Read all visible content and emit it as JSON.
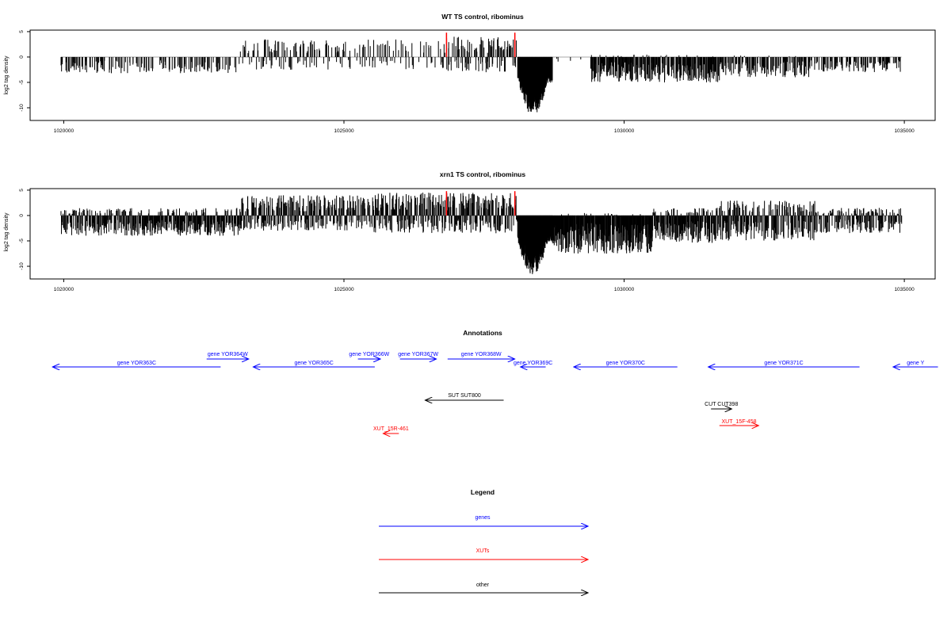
{
  "chart_data": [
    {
      "type": "bar",
      "title": "WT TS control, ribominus",
      "xlabel": "",
      "ylabel": "log2 tag density",
      "xlim": [
        1019400,
        1035550
      ],
      "ylim": [
        -12.5,
        5.3
      ],
      "x_ticks": [
        1020000,
        1025000,
        1030000,
        1035000
      ],
      "x_tick_labels": [
        "1020000",
        "1025000",
        "1030000",
        "1035000"
      ],
      "y_ticks": [
        5,
        0,
        -5,
        -10
      ],
      "y_tick_labels": [
        "5",
        "0",
        "-5",
        "-10"
      ],
      "grid": false,
      "baseline_color": "#aaaaaa",
      "bar_color": "#000000",
      "highlight_color": "#ff0000",
      "highlight_positions": [
        1026830,
        1028050
      ],
      "highlight_value": 4.8,
      "segments": [
        {
          "start": 1019950,
          "end": 1023150,
          "sense_max": 0.0,
          "anti_max": 3.2,
          "density": 0.32,
          "seed": 11
        },
        {
          "start": 1023150,
          "end": 1026750,
          "sense_max": 3.5,
          "anti_max": 2.5,
          "density": 0.34,
          "seed": 12
        },
        {
          "start": 1026750,
          "end": 1028100,
          "sense_max": 4.0,
          "anti_max": 3.0,
          "density": 0.55,
          "seed": 13
        },
        {
          "start": 1028100,
          "end": 1028720,
          "sense_max": 0.0,
          "anti_max": 11.5,
          "density": 1.0,
          "seed": 14,
          "dense": true
        },
        {
          "start": 1028720,
          "end": 1029400,
          "sense_max": 0.0,
          "anti_max": 1.0,
          "density": 0.05,
          "seed": 15
        },
        {
          "start": 1029400,
          "end": 1031700,
          "sense_max": 0.5,
          "anti_max": 5.0,
          "density": 0.75,
          "seed": 16
        },
        {
          "start": 1031700,
          "end": 1033300,
          "sense_max": 0.3,
          "anti_max": 4.0,
          "density": 0.55,
          "seed": 17
        },
        {
          "start": 1033300,
          "end": 1034950,
          "sense_max": 0.0,
          "anti_max": 3.0,
          "density": 0.45,
          "seed": 18
        }
      ]
    },
    {
      "type": "bar",
      "title": "xrn1 TS control, ribominus",
      "xlabel": "",
      "ylabel": "log2 tag density",
      "xlim": [
        1019400,
        1035550
      ],
      "ylim": [
        -12.5,
        5.3
      ],
      "x_ticks": [
        1020000,
        1025000,
        1030000,
        1035000
      ],
      "x_tick_labels": [
        "1020000",
        "1025000",
        "1030000",
        "1035000"
      ],
      "y_ticks": [
        5,
        0,
        -5,
        -10
      ],
      "y_tick_labels": [
        "5",
        "0",
        "-5",
        "-10"
      ],
      "grid": false,
      "baseline_color": "#aaaaaa",
      "bar_color": "#000000",
      "highlight_color": "#ff0000",
      "highlight_positions": [
        1026830,
        1028050
      ],
      "highlight_value": 4.8,
      "segments": [
        {
          "start": 1019950,
          "end": 1023150,
          "sense_max": 1.5,
          "anti_max": 4.0,
          "density": 0.85,
          "seed": 21
        },
        {
          "start": 1023150,
          "end": 1025500,
          "sense_max": 4.0,
          "anti_max": 3.0,
          "density": 0.8,
          "seed": 22
        },
        {
          "start": 1025500,
          "end": 1026800,
          "sense_max": 4.5,
          "anti_max": 3.5,
          "density": 0.8,
          "seed": 23
        },
        {
          "start": 1026800,
          "end": 1028100,
          "sense_max": 4.5,
          "anti_max": 3.5,
          "density": 0.9,
          "seed": 24
        },
        {
          "start": 1028100,
          "end": 1028720,
          "sense_max": 0.0,
          "anti_max": 11.7,
          "density": 1.0,
          "seed": 25,
          "dense": true
        },
        {
          "start": 1028720,
          "end": 1030500,
          "sense_max": 0.5,
          "anti_max": 7.5,
          "density": 0.95,
          "seed": 26
        },
        {
          "start": 1030500,
          "end": 1031600,
          "sense_max": 1.5,
          "anti_max": 5.5,
          "density": 0.9,
          "seed": 27
        },
        {
          "start": 1031600,
          "end": 1033400,
          "sense_max": 3.0,
          "anti_max": 5.0,
          "density": 0.85,
          "seed": 28
        },
        {
          "start": 1033400,
          "end": 1034950,
          "sense_max": 1.5,
          "anti_max": 3.5,
          "density": 0.7,
          "seed": 29
        }
      ]
    }
  ],
  "annotations": {
    "title": "Annotations",
    "items": [
      {
        "label": "gene YOR363C",
        "start": 1019800,
        "end": 1022800,
        "direction": "reverse",
        "row": 1,
        "color": "#0000ff"
      },
      {
        "label": "gene YOR364W",
        "start": 1022550,
        "end": 1023300,
        "direction": "forward",
        "row": 0,
        "color": "#0000ff"
      },
      {
        "label": "gene YOR365C",
        "start": 1023380,
        "end": 1025550,
        "direction": "reverse",
        "row": 1,
        "color": "#0000ff"
      },
      {
        "label": "gene YOR366W",
        "start": 1025250,
        "end": 1025650,
        "direction": "forward",
        "row": 0,
        "color": "#0000ff"
      },
      {
        "label": "gene YOR367W",
        "start": 1026000,
        "end": 1026650,
        "direction": "forward",
        "row": 0,
        "color": "#0000ff"
      },
      {
        "label": "gene YOR368W",
        "start": 1026850,
        "end": 1028050,
        "direction": "forward",
        "row": 0,
        "color": "#0000ff"
      },
      {
        "label": "gene YOR369C",
        "start": 1028150,
        "end": 1028600,
        "direction": "reverse",
        "row": 1,
        "color": "#0000ff"
      },
      {
        "label": "gene YOR370C",
        "start": 1029100,
        "end": 1030950,
        "direction": "reverse",
        "row": 1,
        "color": "#0000ff"
      },
      {
        "label": "gene YOR371C",
        "start": 1031500,
        "end": 1034200,
        "direction": "reverse",
        "row": 1,
        "color": "#0000ff"
      },
      {
        "label": "gene Y",
        "start": 1034800,
        "end": 1035600,
        "direction": "reverse",
        "row": 1,
        "color": "#0000ff"
      },
      {
        "label": "SUT SUT800",
        "start": 1026450,
        "end": 1027850,
        "direction": "reverse",
        "row": 2,
        "color": "#000000"
      },
      {
        "label": "CUT CUT398",
        "start": 1031550,
        "end": 1031920,
        "direction": "forward",
        "row": 3,
        "color": "#000000"
      },
      {
        "label": "XUT_15F-458",
        "start": 1031700,
        "end": 1032400,
        "direction": "forward",
        "row": 4,
        "color": "#ff0000"
      },
      {
        "label": "XUT_15R-461",
        "start": 1025700,
        "end": 1025980,
        "direction": "reverse",
        "row": 5,
        "color": "#ff0000"
      }
    ]
  },
  "legend": {
    "title": "Legend",
    "items": [
      {
        "label": "genes",
        "color": "#0000ff"
      },
      {
        "label": "XUTs",
        "color": "#ff0000"
      },
      {
        "label": "other",
        "color": "#000000"
      }
    ]
  }
}
